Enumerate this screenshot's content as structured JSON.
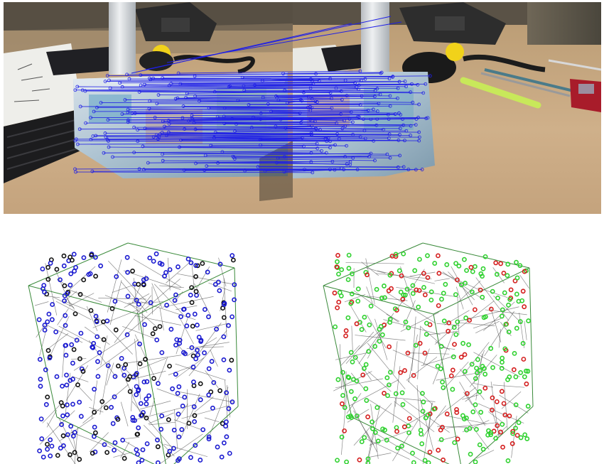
{
  "figure": {
    "top_panel": {
      "kind": "stereo-photo-feature-matches",
      "left_view": "desk-scene-left-camera",
      "right_view": "desk-scene-right-camera",
      "match_line_color": "#1f1fe6",
      "scene_colors": {
        "desk": "#c9a97f",
        "wall": "#5b564b",
        "box": "#c7d4df",
        "phone": "#2a2a2a",
        "pen": "#c8e85a",
        "ball": "#f1d21a",
        "cylinder": "#e3e6e8"
      }
    },
    "bottom_panel": {
      "kind": "3d-point-cloud-cubes",
      "left_cube": {
        "point_colors": [
          "#1a1ad0",
          "#111111"
        ]
      },
      "right_cube": {
        "point_colors": [
          "#d41e1e",
          "#2fd12f"
        ]
      },
      "edge_color": "#3a8a3a",
      "lattice_color": "#2a2a2a"
    }
  }
}
